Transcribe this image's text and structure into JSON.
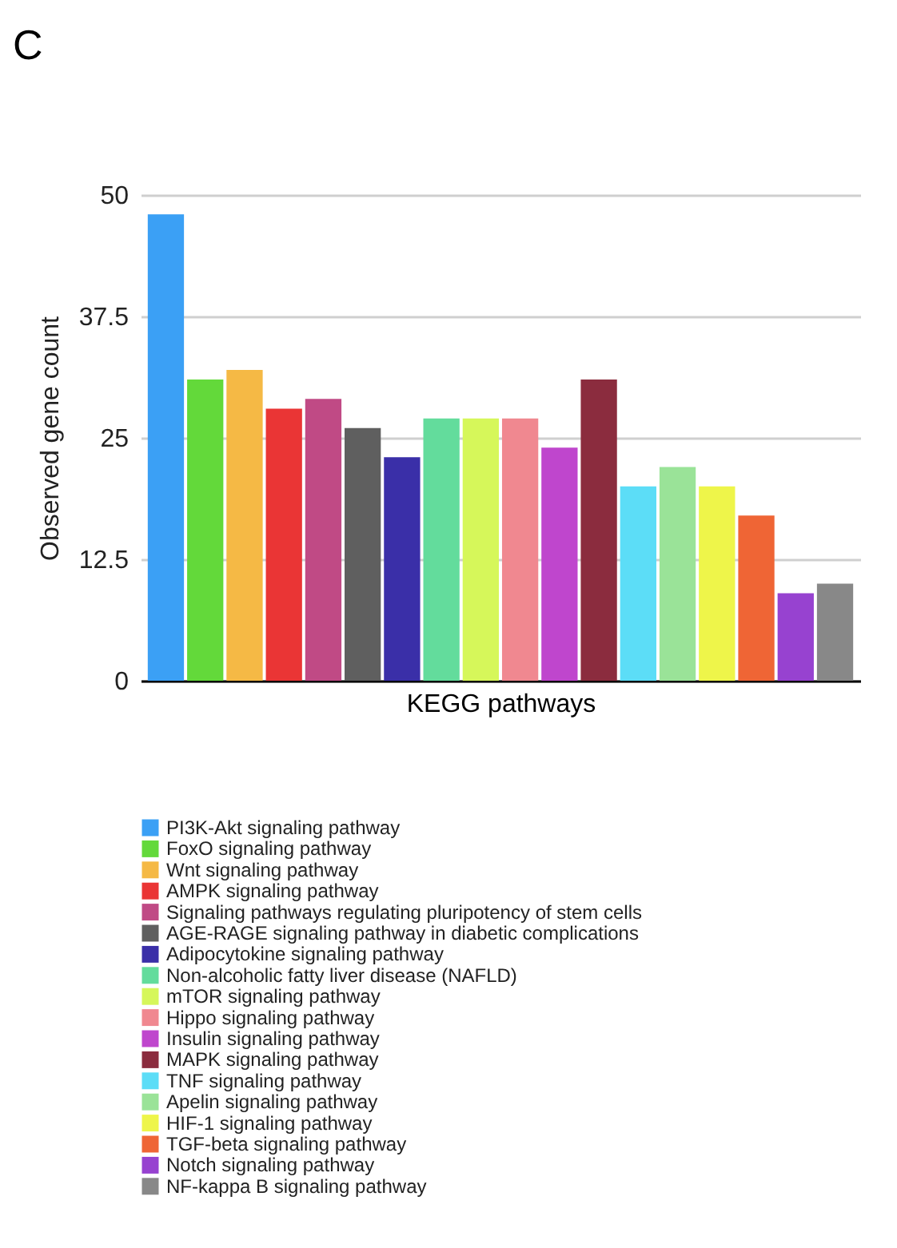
{
  "chart_data": {
    "type": "bar",
    "title": "C",
    "xlabel": "KEGG pathways",
    "ylabel": "Observed gene count",
    "categories": [
      null
    ],
    "series": [
      {
        "name": "PI3K-Akt signaling pathway",
        "color": "#3ba0f5",
        "values": [
          48
        ]
      },
      {
        "name": "FoxO signaling pathway",
        "color": "#63d93a",
        "values": [
          31
        ]
      },
      {
        "name": "Wnt signaling pathway",
        "color": "#f5b945",
        "values": [
          32
        ]
      },
      {
        "name": "AMPK signaling pathway",
        "color": "#ea3535",
        "values": [
          28
        ]
      },
      {
        "name": "Signaling pathways regulating pluripotency of stem cells",
        "color": "#c04a85",
        "values": [
          29
        ]
      },
      {
        "name": "AGE-RAGE signaling pathway in diabetic complications",
        "color": "#5f5f5f",
        "values": [
          26
        ]
      },
      {
        "name": "Adipocytokine signaling pathway",
        "color": "#3a2fa8",
        "values": [
          23
        ]
      },
      {
        "name": "Non-alcoholic fatty liver disease (NAFLD)",
        "color": "#63dc9c",
        "values": [
          27
        ]
      },
      {
        "name": "mTOR signaling pathway",
        "color": "#d6f75a",
        "values": [
          27
        ]
      },
      {
        "name": "Hippo signaling pathway",
        "color": "#f08890",
        "values": [
          27
        ]
      },
      {
        "name": "Insulin signaling pathway",
        "color": "#bf46cd",
        "values": [
          24
        ]
      },
      {
        "name": "MAPK signaling pathway",
        "color": "#8b2c3e",
        "values": [
          31
        ]
      },
      {
        "name": "TNF signaling pathway",
        "color": "#5cddf7",
        "values": [
          20
        ]
      },
      {
        "name": "Apelin signaling pathway",
        "color": "#9ae398",
        "values": [
          22
        ]
      },
      {
        "name": "HIF-1 signaling pathway",
        "color": "#eef54a",
        "values": [
          20
        ]
      },
      {
        "name": "TGF-beta signaling pathway",
        "color": "#ef6535",
        "values": [
          17
        ]
      },
      {
        "name": "Notch signaling pathway",
        "color": "#9742d0",
        "values": [
          9
        ]
      },
      {
        "name": "NF-kappa B signaling pathway",
        "color": "#888888",
        "values": [
          10
        ]
      }
    ],
    "ylim": [
      0,
      50
    ],
    "yticks": [
      0,
      12.5,
      25,
      37.5,
      50
    ],
    "grid": "y",
    "legend": "bottom",
    "tick_labels": "y"
  }
}
